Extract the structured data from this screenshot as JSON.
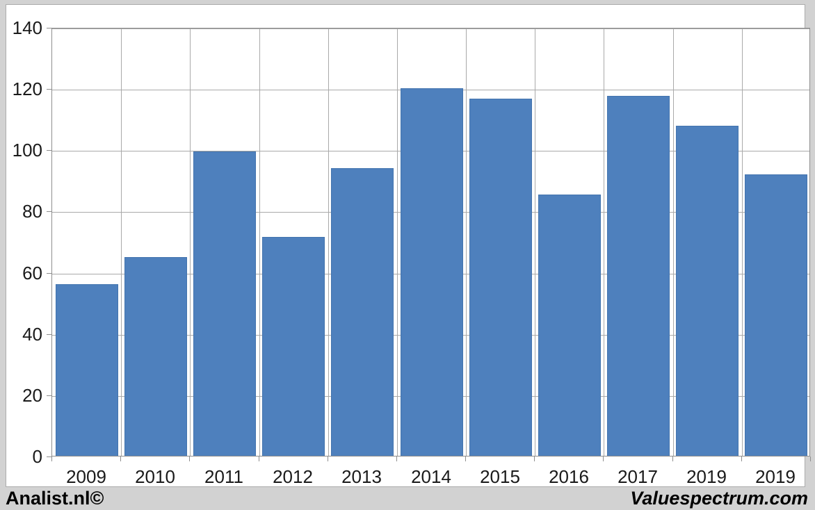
{
  "chart_data": {
    "type": "bar",
    "categories": [
      "2009",
      "2010",
      "2011",
      "2012",
      "2013",
      "2014",
      "2015",
      "2016",
      "2017",
      "2019",
      "2019"
    ],
    "values": [
      56,
      64.8,
      99.4,
      71.5,
      94,
      120,
      116.7,
      85.3,
      117.6,
      107.8,
      92
    ],
    "title": "",
    "xlabel": "",
    "ylabel": "",
    "ylim": [
      0,
      140
    ],
    "yticks": [
      0,
      20,
      40,
      60,
      80,
      100,
      120,
      140
    ],
    "grid": "horizontal-and-vertical",
    "legend_position": "none",
    "bar_color": "#4e80bd",
    "bar_border_color": "#4374ae"
  },
  "colors": {
    "page_background": "#d2d2d2",
    "panel_background": "#ffffff",
    "panel_border": "#ababab",
    "plot_border": "#8e8e8e",
    "gridline": "#a9a9a9",
    "tick_label": "#1a1a1a"
  },
  "footer": {
    "left_label": "Analist.nl©",
    "right_label": "Valuespectrum.com"
  }
}
